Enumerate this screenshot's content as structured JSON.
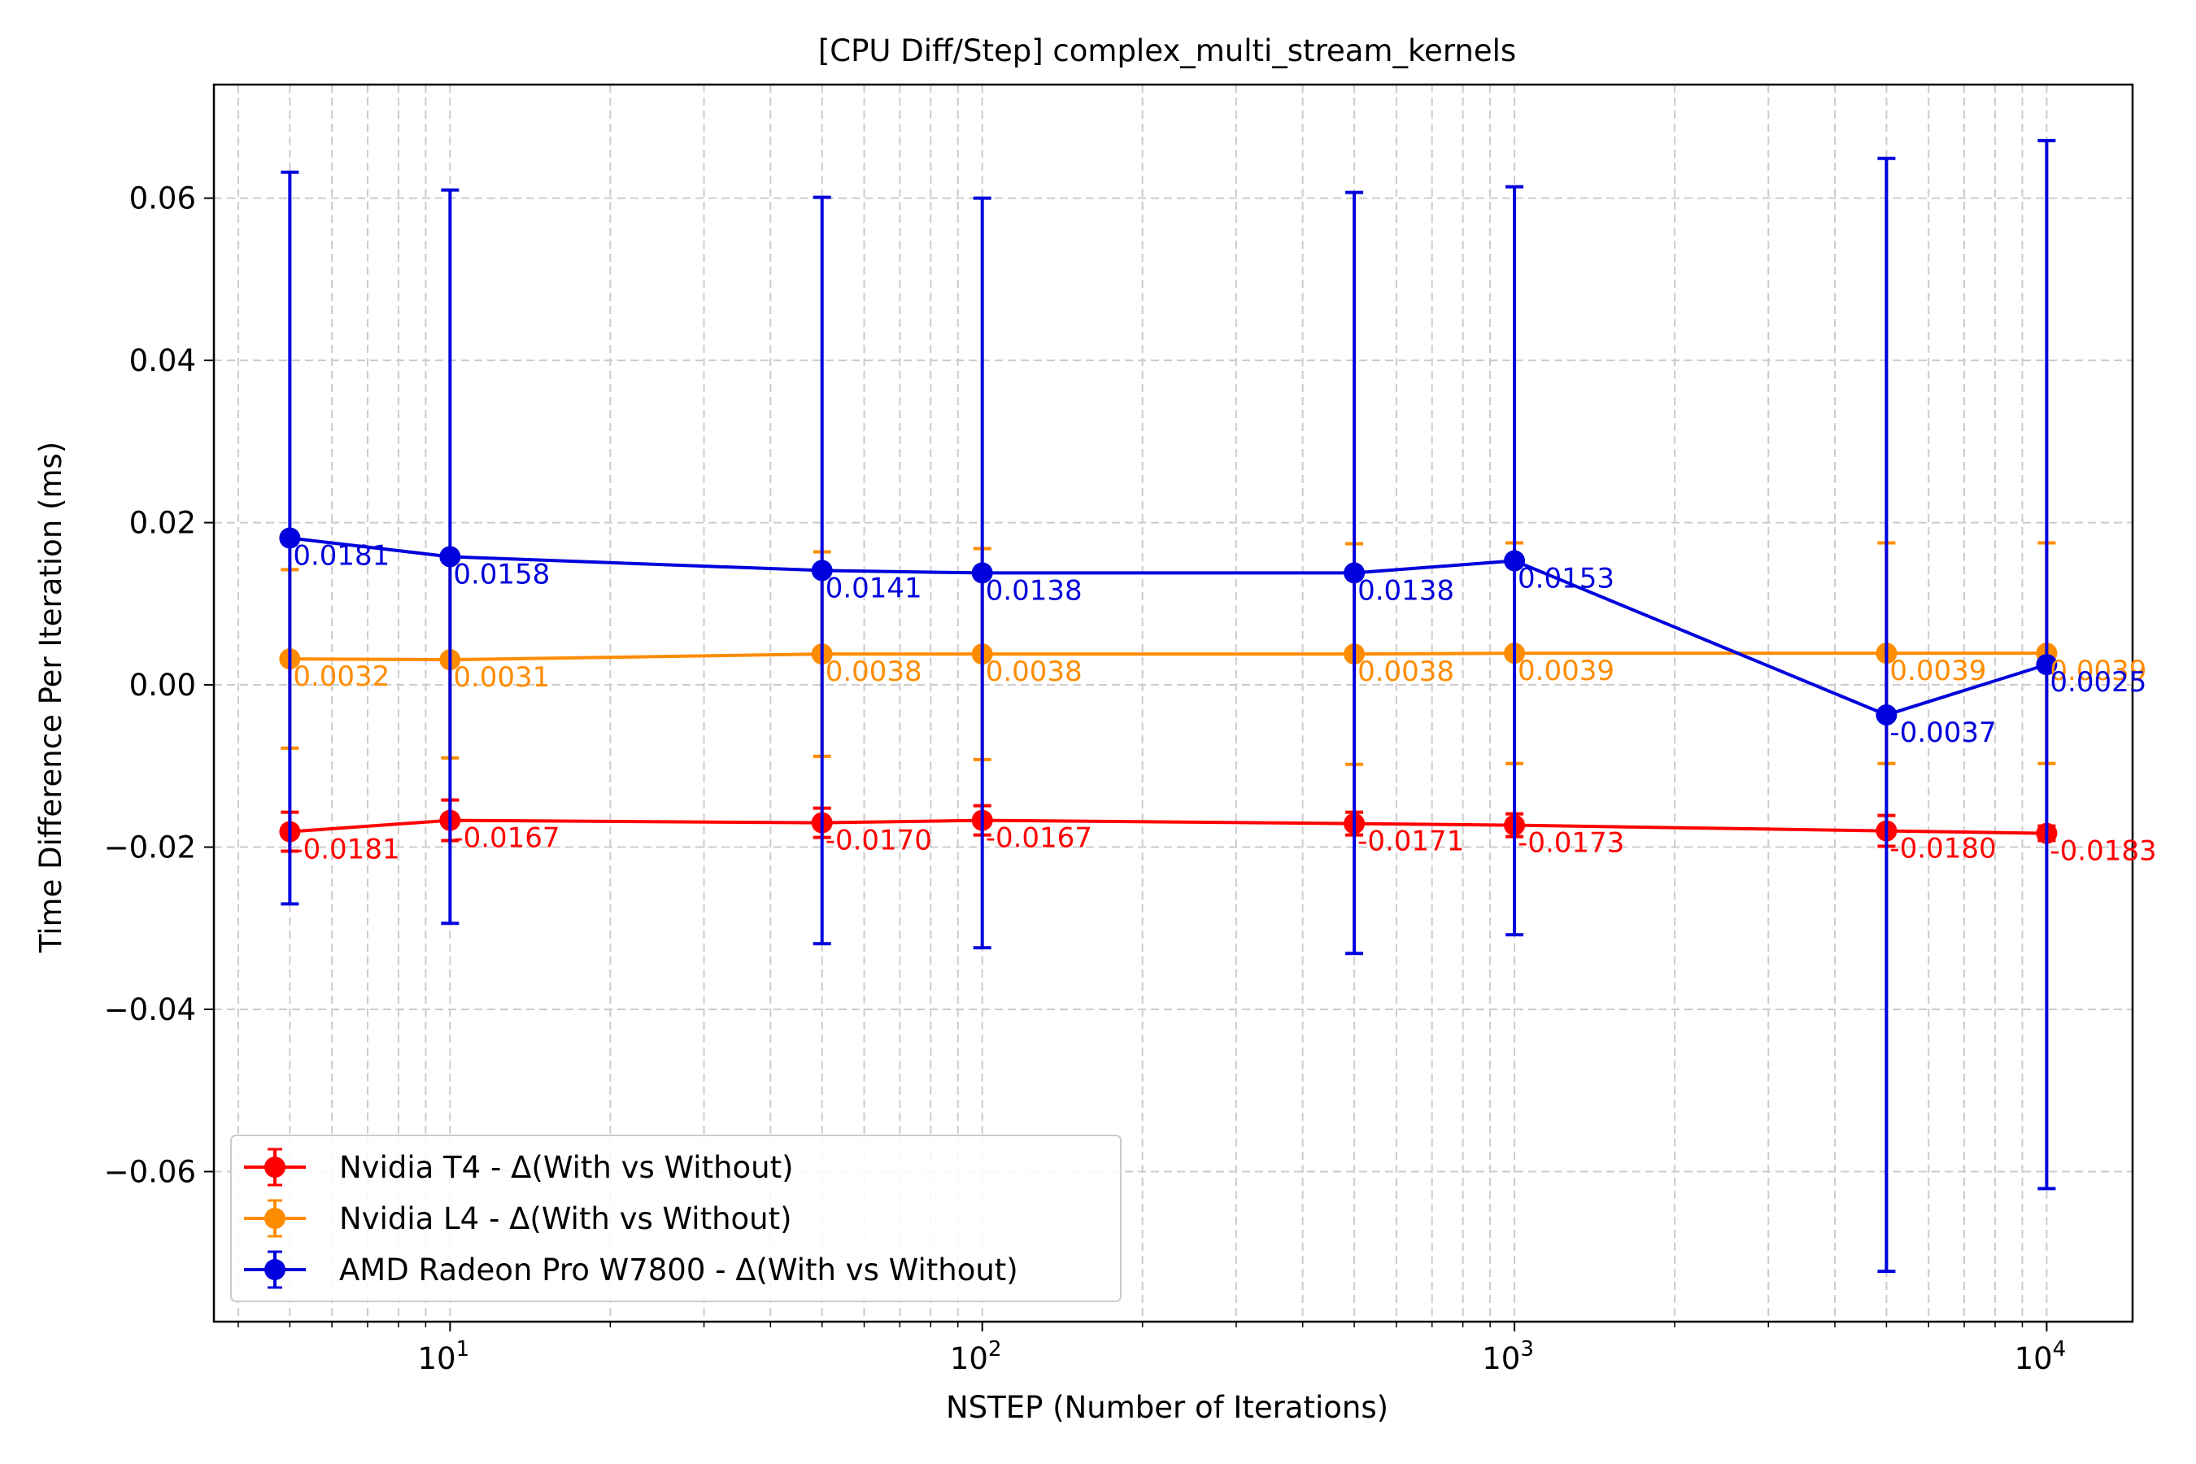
{
  "chart_data": {
    "type": "line",
    "title": "[CPU Diff/Step] complex_multi_stream_kernels",
    "xlabel": "NSTEP (Number of Iterations)",
    "ylabel": "Time Difference Per Iteration (ms)",
    "x_scale": "log",
    "xlim": [
      3.6,
      14500
    ],
    "ylim": [
      -0.0785,
      0.074
    ],
    "x_ticks": [
      {
        "value": 10,
        "base": "10",
        "exp": "1"
      },
      {
        "value": 100,
        "base": "10",
        "exp": "2"
      },
      {
        "value": 1000,
        "base": "10",
        "exp": "3"
      },
      {
        "value": 10000,
        "base": "10",
        "exp": "4"
      }
    ],
    "y_ticks": [
      {
        "value": 0.06,
        "label": "0.06"
      },
      {
        "value": 0.04,
        "label": "0.04"
      },
      {
        "value": 0.02,
        "label": "0.02"
      },
      {
        "value": 0.0,
        "label": "0.00"
      },
      {
        "value": -0.02,
        "label": "−0.02"
      },
      {
        "value": -0.04,
        "label": "−0.04"
      },
      {
        "value": -0.06,
        "label": "−0.06"
      }
    ],
    "grid": true,
    "legend_position": "lower-left",
    "x": [
      5,
      10,
      50,
      100,
      500,
      1000,
      5000,
      10000
    ],
    "series": [
      {
        "name": "Nvidia T4 - Δ(With vs Without)",
        "color": "#ff0000",
        "values": [
          -0.0181,
          -0.0167,
          -0.017,
          -0.0167,
          -0.0171,
          -0.0173,
          -0.018,
          -0.0183
        ],
        "labels": [
          "-0.0181",
          "-0.0167",
          "-0.0170",
          "-0.0167",
          "-0.0171",
          "-0.0173",
          "-0.0180",
          "-0.0183"
        ],
        "errors": [
          0.0024,
          0.0025,
          0.0018,
          0.0018,
          0.0014,
          0.0014,
          0.0019,
          0.0009
        ]
      },
      {
        "name": "Nvidia L4 - Δ(With vs Without)",
        "color": "#ff8c00",
        "values": [
          0.0032,
          0.0031,
          0.0038,
          0.0038,
          0.0038,
          0.0039,
          0.0039,
          0.0039
        ],
        "labels": [
          "0.0032",
          "0.0031",
          "0.0038",
          "0.0038",
          "0.0038",
          "0.0039",
          "0.0039",
          "0.0039"
        ],
        "errors": [
          0.011,
          0.0121,
          0.0126,
          0.013,
          0.0136,
          0.0136,
          0.0136,
          0.0136
        ]
      },
      {
        "name": "AMD Radeon Pro W7800 - Δ(With vs Without)",
        "color": "#0000dd",
        "values": [
          0.0181,
          0.0158,
          0.0141,
          0.0138,
          0.0138,
          0.0153,
          -0.0037,
          0.0025
        ],
        "labels": [
          "0.0181",
          "0.0158",
          "0.0141",
          "0.0138",
          "0.0138",
          "0.0153",
          "-0.0037",
          "0.0025"
        ],
        "errors": [
          0.0451,
          0.0452,
          0.046,
          0.0462,
          0.0469,
          0.0461,
          0.0686,
          0.0646
        ]
      }
    ]
  }
}
